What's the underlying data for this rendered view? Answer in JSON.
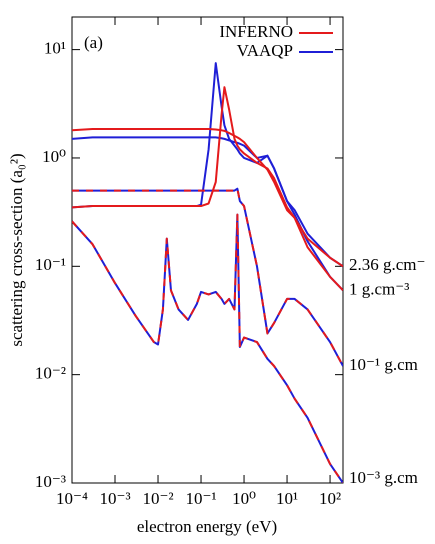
{
  "chart_data": {
    "type": "line",
    "annotation": "(a)",
    "x_label": "electron energy (eV)",
    "y_label": "scattering cross-section (a₀²)",
    "log_x": true,
    "log_y": true,
    "xlim": [
      0.0001,
      200
    ],
    "ylim": [
      0.001,
      20
    ],
    "xticks": [
      {
        "value": 0.0001,
        "label": "10⁻⁴"
      },
      {
        "value": 0.001,
        "label": "10⁻³"
      },
      {
        "value": 0.01,
        "label": "10⁻²"
      },
      {
        "value": 0.1,
        "label": "10⁻¹"
      },
      {
        "value": 1,
        "label": "10⁰"
      },
      {
        "value": 10,
        "label": "10¹"
      },
      {
        "value": 100,
        "label": "10²"
      }
    ],
    "yticks": [
      {
        "value": 0.001,
        "label": "10⁻³"
      },
      {
        "value": 0.01,
        "label": "10⁻²"
      },
      {
        "value": 0.1,
        "label": "10⁻¹"
      },
      {
        "value": 1,
        "label": "10⁰"
      },
      {
        "value": 10,
        "label": "10¹"
      }
    ],
    "legend": "top-right",
    "curve_labels": [
      "2.36 g.cm⁻",
      "1 g.cm⁻³",
      "10⁻¹ g.cm",
      "10⁻³ g.cm"
    ],
    "x": [
      0.0001,
      0.0003,
      0.001,
      0.003,
      0.008,
      0.01,
      0.013,
      0.016,
      0.02,
      0.03,
      0.05,
      0.08,
      0.1,
      0.15,
      0.22,
      0.3,
      0.35,
      0.45,
      0.6,
      0.7,
      0.8,
      1,
      2,
      3.5,
      5,
      10,
      15,
      30,
      100,
      200
    ],
    "series": [
      {
        "name": "INFERNO",
        "color": "#e41a1c",
        "dashed": [
          false,
          false,
          true,
          true
        ],
        "curves": [
          [
            1.8,
            1.85,
            1.85,
            1.85,
            1.85,
            1.85,
            1.85,
            1.85,
            1.85,
            1.85,
            1.85,
            1.85,
            1.85,
            1.85,
            1.83,
            1.8,
            1.78,
            1.7,
            1.6,
            1.55,
            1.5,
            1.4,
            1.0,
            0.78,
            0.6,
            0.33,
            0.28,
            0.18,
            0.12,
            0.1
          ],
          [
            0.35,
            0.36,
            0.36,
            0.36,
            0.36,
            0.36,
            0.36,
            0.36,
            0.36,
            0.36,
            0.36,
            0.36,
            0.36,
            0.38,
            0.6,
            2.5,
            4.5,
            2.8,
            1.5,
            1.3,
            1.2,
            1.1,
            0.9,
            0.8,
            0.65,
            0.35,
            0.28,
            0.15,
            0.08,
            0.06
          ],
          [
            0.5,
            0.5,
            0.5,
            0.5,
            0.5,
            0.5,
            0.5,
            0.5,
            0.5,
            0.5,
            0.5,
            0.5,
            0.5,
            0.5,
            0.5,
            0.5,
            0.5,
            0.5,
            0.5,
            0.52,
            0.4,
            0.36,
            0.1,
            0.024,
            0.03,
            0.05,
            0.05,
            0.04,
            0.02,
            0.012
          ],
          [
            0.26,
            0.16,
            0.07,
            0.035,
            0.02,
            0.019,
            0.04,
            0.18,
            0.06,
            0.04,
            0.032,
            0.045,
            0.058,
            0.055,
            0.058,
            0.05,
            0.045,
            0.05,
            0.04,
            0.3,
            0.018,
            0.022,
            0.02,
            0.014,
            0.012,
            0.008,
            0.006,
            0.004,
            0.0015,
            0.001
          ]
        ]
      },
      {
        "name": "VAAQP",
        "color": "#1f1fd6",
        "dashed": [
          false,
          false,
          false,
          false
        ],
        "curves": [
          [
            1.5,
            1.55,
            1.55,
            1.55,
            1.55,
            1.55,
            1.55,
            1.55,
            1.55,
            1.55,
            1.55,
            1.55,
            1.55,
            1.55,
            1.55,
            1.52,
            1.5,
            1.45,
            1.4,
            1.38,
            1.35,
            1.3,
            1.0,
            1.05,
            0.8,
            0.4,
            0.33,
            0.2,
            0.12,
            0.1
          ],
          [
            0.35,
            0.36,
            0.36,
            0.36,
            0.36,
            0.36,
            0.36,
            0.36,
            0.36,
            0.36,
            0.36,
            0.36,
            0.37,
            1.2,
            7.5,
            3,
            2,
            1.5,
            1.3,
            1.2,
            1.1,
            1.0,
            0.9,
            1.05,
            0.8,
            0.4,
            0.3,
            0.17,
            0.08,
            0.06
          ],
          [
            0.5,
            0.5,
            0.5,
            0.5,
            0.5,
            0.5,
            0.5,
            0.5,
            0.5,
            0.5,
            0.5,
            0.5,
            0.5,
            0.5,
            0.5,
            0.5,
            0.5,
            0.5,
            0.5,
            0.52,
            0.4,
            0.36,
            0.1,
            0.024,
            0.03,
            0.05,
            0.05,
            0.04,
            0.02,
            0.012
          ],
          [
            0.26,
            0.16,
            0.07,
            0.035,
            0.02,
            0.019,
            0.04,
            0.18,
            0.06,
            0.04,
            0.032,
            0.045,
            0.058,
            0.055,
            0.058,
            0.05,
            0.045,
            0.05,
            0.04,
            0.3,
            0.018,
            0.022,
            0.02,
            0.014,
            0.012,
            0.008,
            0.006,
            0.004,
            0.0015,
            0.001
          ]
        ]
      }
    ]
  }
}
